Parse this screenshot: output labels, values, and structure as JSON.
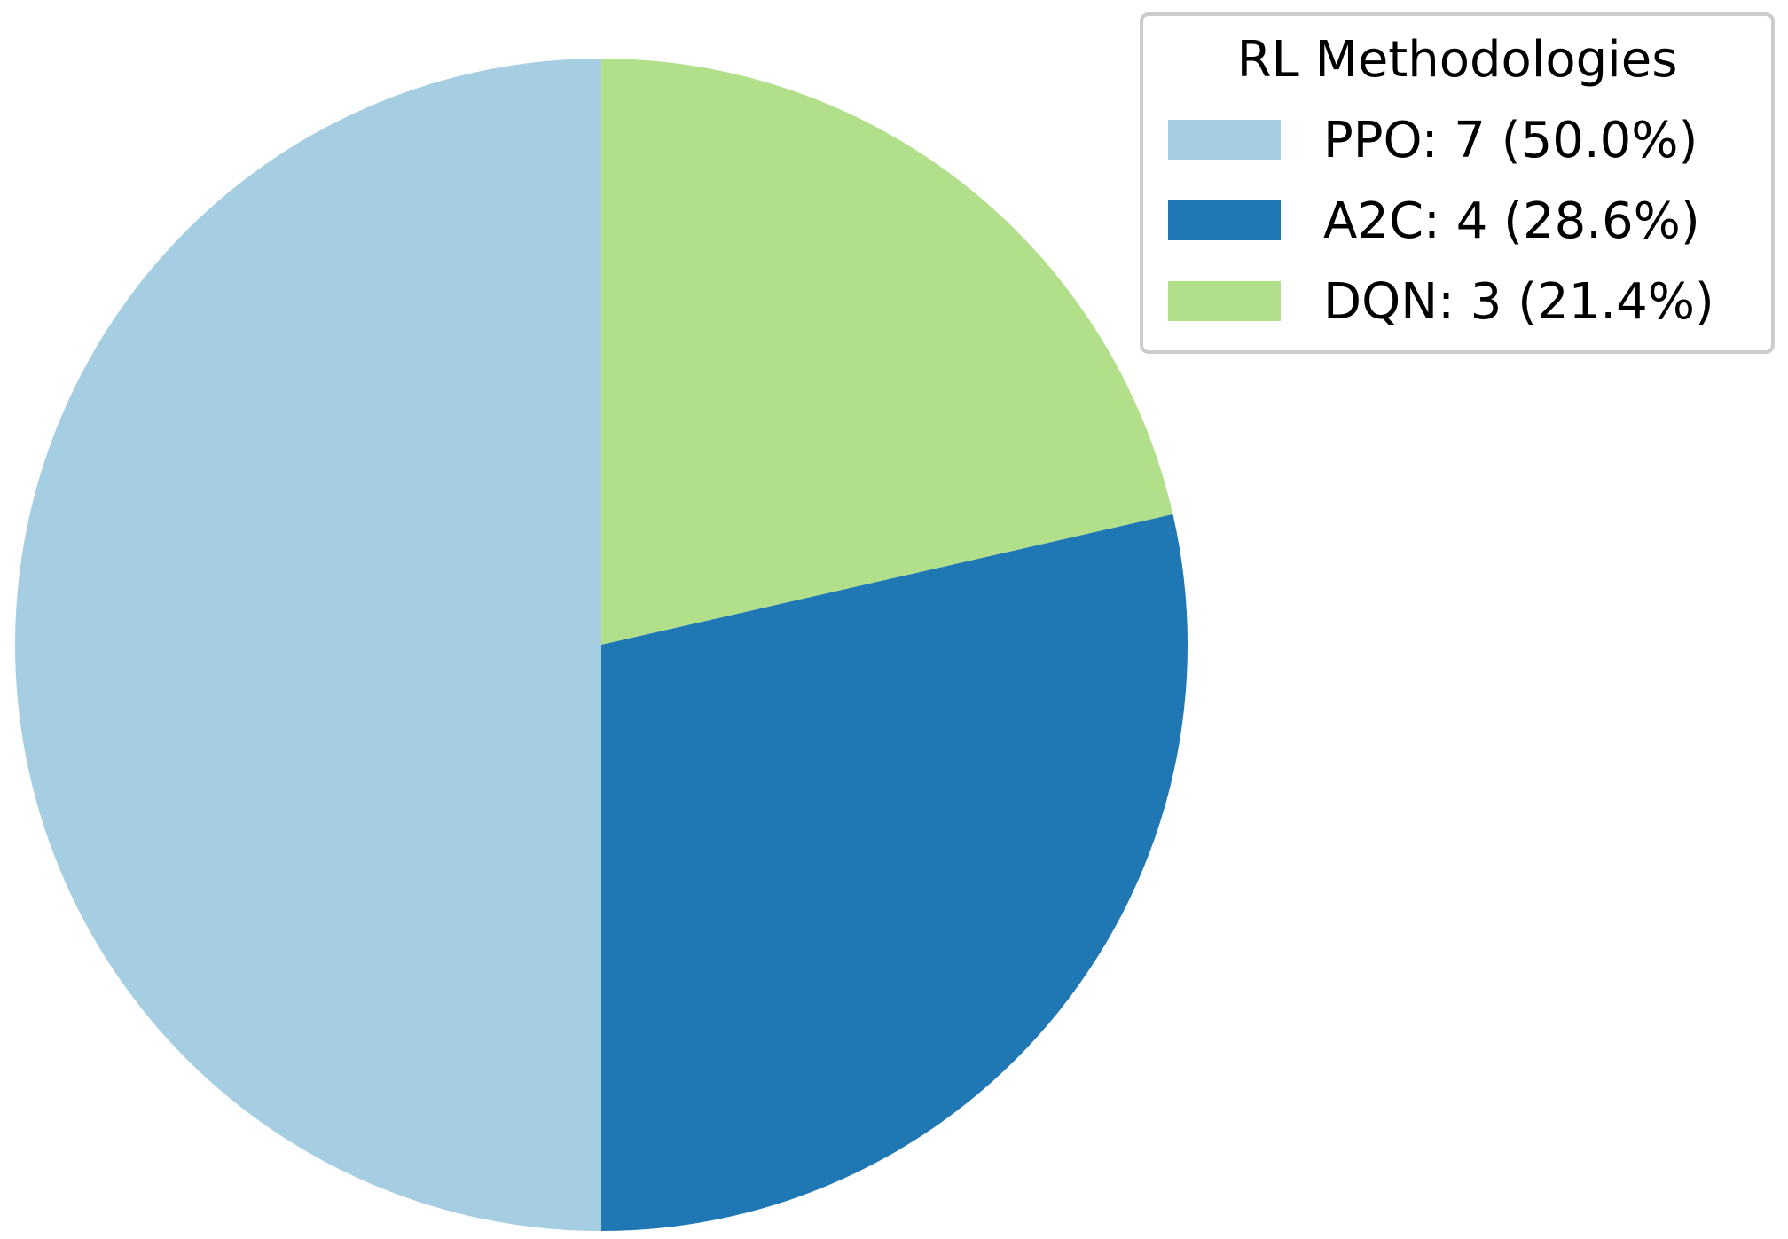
{
  "chart_data": {
    "type": "pie",
    "legend": {
      "title": "RL Methodologies",
      "placement": "top-right"
    },
    "slices": [
      {
        "label": "PPO",
        "value": 7,
        "percent": 50.0,
        "legend_text": "PPO: 7 (50.0%)",
        "color": "#a6cee3"
      },
      {
        "label": "A2C",
        "value": 4,
        "percent": 28.6,
        "legend_text": "A2C: 4 (28.6%)",
        "color": "#1f78b4"
      },
      {
        "label": "DQN",
        "value": 3,
        "percent": 21.4,
        "legend_text": "DQN: 3 (21.4%)",
        "color": "#b2df8a"
      }
    ],
    "start_angle_deg": 90,
    "direction": "clockwise"
  }
}
